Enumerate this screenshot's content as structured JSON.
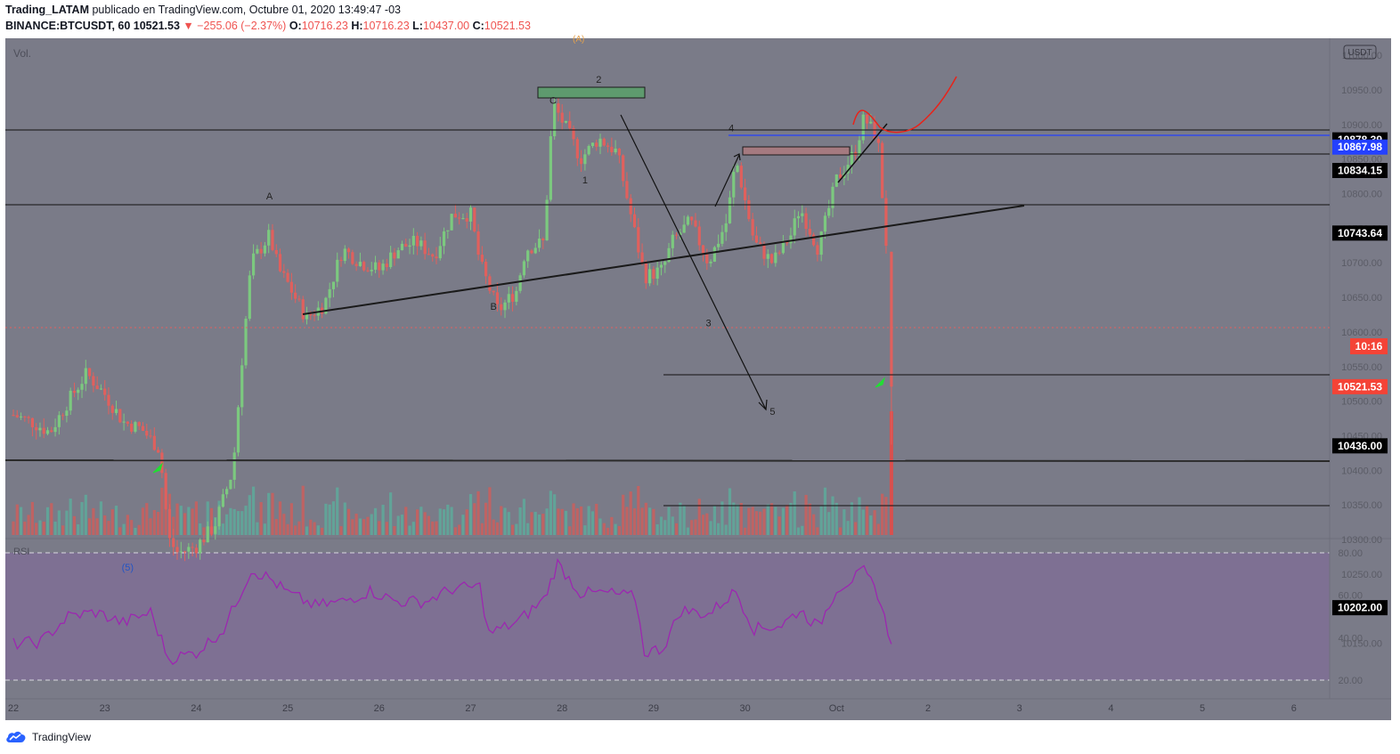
{
  "header": {
    "author": "Trading_LATAM",
    "published": "publicado en TradingView.com, Octubre 01, 2020 13:49:47 -03",
    "symbol": "BINANCE:BTCUSDT, 60",
    "last": "10521.53",
    "change": "▼ −255.06 (−2.37%)",
    "o_label": "O:",
    "o": "10716.23",
    "h_label": "H:",
    "h": "10716.23",
    "l_label": "L:",
    "l": "10437.00",
    "c_label": "C:",
    "c": "10521.53"
  },
  "chart": {
    "vol_label": "Vol.",
    "rsi_label": "RSI",
    "currency": "USDT",
    "countdown": "10:16",
    "top_marker": "(A)",
    "price_ticks": [
      "11000.00",
      "10950.00",
      "10900.00",
      "10850.00",
      "10800.00",
      "10750.00",
      "10700.00",
      "10650.00",
      "10600.00",
      "10550.00",
      "10500.00",
      "10450.00",
      "10400.00",
      "10350.00",
      "10300.00",
      "10250.00",
      "10200.00",
      "10150.00"
    ],
    "rsi_ticks": [
      "80.00",
      "60.00",
      "40.00",
      "20.00"
    ],
    "x_ticks": [
      "22",
      "23",
      "24",
      "25",
      "26",
      "27",
      "28",
      "29",
      "30",
      "Oct",
      "2",
      "3",
      "4",
      "5",
      "6"
    ],
    "level_labels": [
      {
        "price": 10878.39,
        "text": "10878.39",
        "style": "black"
      },
      {
        "price": 10867.98,
        "text": "10867.98",
        "style": "blue"
      },
      {
        "price": 10834.15,
        "text": "10834.15",
        "style": "black"
      },
      {
        "price": 10743.64,
        "text": "10743.64",
        "style": "black"
      },
      {
        "price": 10521.53,
        "text": "10521.53",
        "style": "red"
      },
      {
        "price": 10436.0,
        "text": "10436.00",
        "style": "black"
      },
      {
        "price": 10202.0,
        "text": "10202.00",
        "style": "black"
      }
    ],
    "wave_labels": [
      {
        "text": "A",
        "price": 10792,
        "x": "24.8"
      },
      {
        "text": "B",
        "price": 10632,
        "x": "27.25"
      },
      {
        "text": "C",
        "price": 10930,
        "x": "27.9"
      },
      {
        "text": "1",
        "price": 10815,
        "x": "28.25"
      },
      {
        "text": "2",
        "price": 10960,
        "x": "28.4"
      },
      {
        "text": "3",
        "price": 10608,
        "x": "29.6"
      },
      {
        "text": "4",
        "price": 10890,
        "x": "29.85"
      },
      {
        "text": "5",
        "price": 10480,
        "x": "30.3"
      },
      {
        "text": "(5)",
        "price": 10255,
        "x": "23.25"
      }
    ]
  },
  "branding": {
    "logo_text": "TradingView"
  },
  "colors": {
    "plot_bg": "#7a7b88",
    "rsi_band": "#7e7093",
    "up": "#7cc97f",
    "down": "#e0605d",
    "rsi_line": "#9c27b0",
    "blue_line": "#2440ff",
    "label_black": "#000000",
    "label_red": "#f44336"
  },
  "chart_data": {
    "type": "candlestick",
    "symbol": "BINANCE:BTCUSDT",
    "interval": "60",
    "x_range": [
      "22",
      "6"
    ],
    "y_range": [
      10150,
      11000
    ],
    "close_trace_hourly": [
      [
        22.0,
        10480
      ],
      [
        22.2,
        10470
      ],
      [
        22.4,
        10455
      ],
      [
        22.6,
        10500
      ],
      [
        22.8,
        10540
      ],
      [
        23.0,
        10510
      ],
      [
        23.2,
        10470
      ],
      [
        23.4,
        10460
      ],
      [
        23.6,
        10430
      ],
      [
        23.7,
        10300
      ],
      [
        23.8,
        10280
      ],
      [
        24.0,
        10290
      ],
      [
        24.2,
        10320
      ],
      [
        24.4,
        10400
      ],
      [
        24.5,
        10560
      ],
      [
        24.6,
        10700
      ],
      [
        24.8,
        10740
      ],
      [
        24.9,
        10690
      ],
      [
        25.0,
        10670
      ],
      [
        25.2,
        10620
      ],
      [
        25.4,
        10640
      ],
      [
        25.6,
        10720
      ],
      [
        25.8,
        10700
      ],
      [
        26.0,
        10690
      ],
      [
        26.2,
        10720
      ],
      [
        26.4,
        10730
      ],
      [
        26.6,
        10710
      ],
      [
        26.8,
        10770
      ],
      [
        27.0,
        10770
      ],
      [
        27.1,
        10700
      ],
      [
        27.3,
        10630
      ],
      [
        27.5,
        10660
      ],
      [
        27.6,
        10720
      ],
      [
        27.8,
        10730
      ],
      [
        27.9,
        10930
      ],
      [
        28.1,
        10880
      ],
      [
        28.2,
        10850
      ],
      [
        28.4,
        10880
      ],
      [
        28.6,
        10860
      ],
      [
        28.8,
        10740
      ],
      [
        28.9,
        10680
      ],
      [
        29.1,
        10690
      ],
      [
        29.2,
        10730
      ],
      [
        29.4,
        10760
      ],
      [
        29.6,
        10700
      ],
      [
        29.8,
        10760
      ],
      [
        29.9,
        10850
      ],
      [
        30.1,
        10730
      ],
      [
        30.3,
        10700
      ],
      [
        30.5,
        10740
      ],
      [
        30.6,
        10780
      ],
      [
        30.8,
        10720
      ],
      [
        31.0,
        10820
      ],
      [
        31.2,
        10860
      ],
      [
        31.3,
        10910
      ],
      [
        31.45,
        10880
      ],
      [
        31.55,
        10716
      ],
      [
        31.6,
        10521
      ]
    ],
    "rsi_trace": [
      [
        22.0,
        37
      ],
      [
        22.3,
        38
      ],
      [
        22.6,
        50
      ],
      [
        22.9,
        52
      ],
      [
        23.2,
        47
      ],
      [
        23.5,
        52
      ],
      [
        23.7,
        30
      ],
      [
        24.0,
        33
      ],
      [
        24.3,
        44
      ],
      [
        24.6,
        72
      ],
      [
        24.8,
        68
      ],
      [
        25.0,
        61
      ],
      [
        25.3,
        55
      ],
      [
        25.6,
        57
      ],
      [
        25.9,
        62
      ],
      [
        26.2,
        57
      ],
      [
        26.5,
        57
      ],
      [
        26.8,
        63
      ],
      [
        27.1,
        64
      ],
      [
        27.2,
        42
      ],
      [
        27.5,
        47
      ],
      [
        27.8,
        58
      ],
      [
        27.95,
        75
      ],
      [
        28.2,
        61
      ],
      [
        28.5,
        61
      ],
      [
        28.8,
        59
      ],
      [
        28.9,
        33
      ],
      [
        29.1,
        35
      ],
      [
        29.3,
        53
      ],
      [
        29.6,
        51
      ],
      [
        29.9,
        62
      ],
      [
        30.1,
        44
      ],
      [
        30.4,
        46
      ],
      [
        30.6,
        53
      ],
      [
        30.8,
        45
      ],
      [
        31.0,
        63
      ],
      [
        31.3,
        71
      ],
      [
        31.45,
        61
      ],
      [
        31.6,
        37
      ]
    ],
    "horizontal_levels": [
      10878.39,
      10867.98,
      10834.15,
      10743.64,
      10436.0,
      10284.0,
      10202.0
    ],
    "annotations": [
      "A",
      "B",
      "C",
      "1",
      "2",
      "3",
      "4",
      "5",
      "(5)",
      "(A)"
    ]
  }
}
